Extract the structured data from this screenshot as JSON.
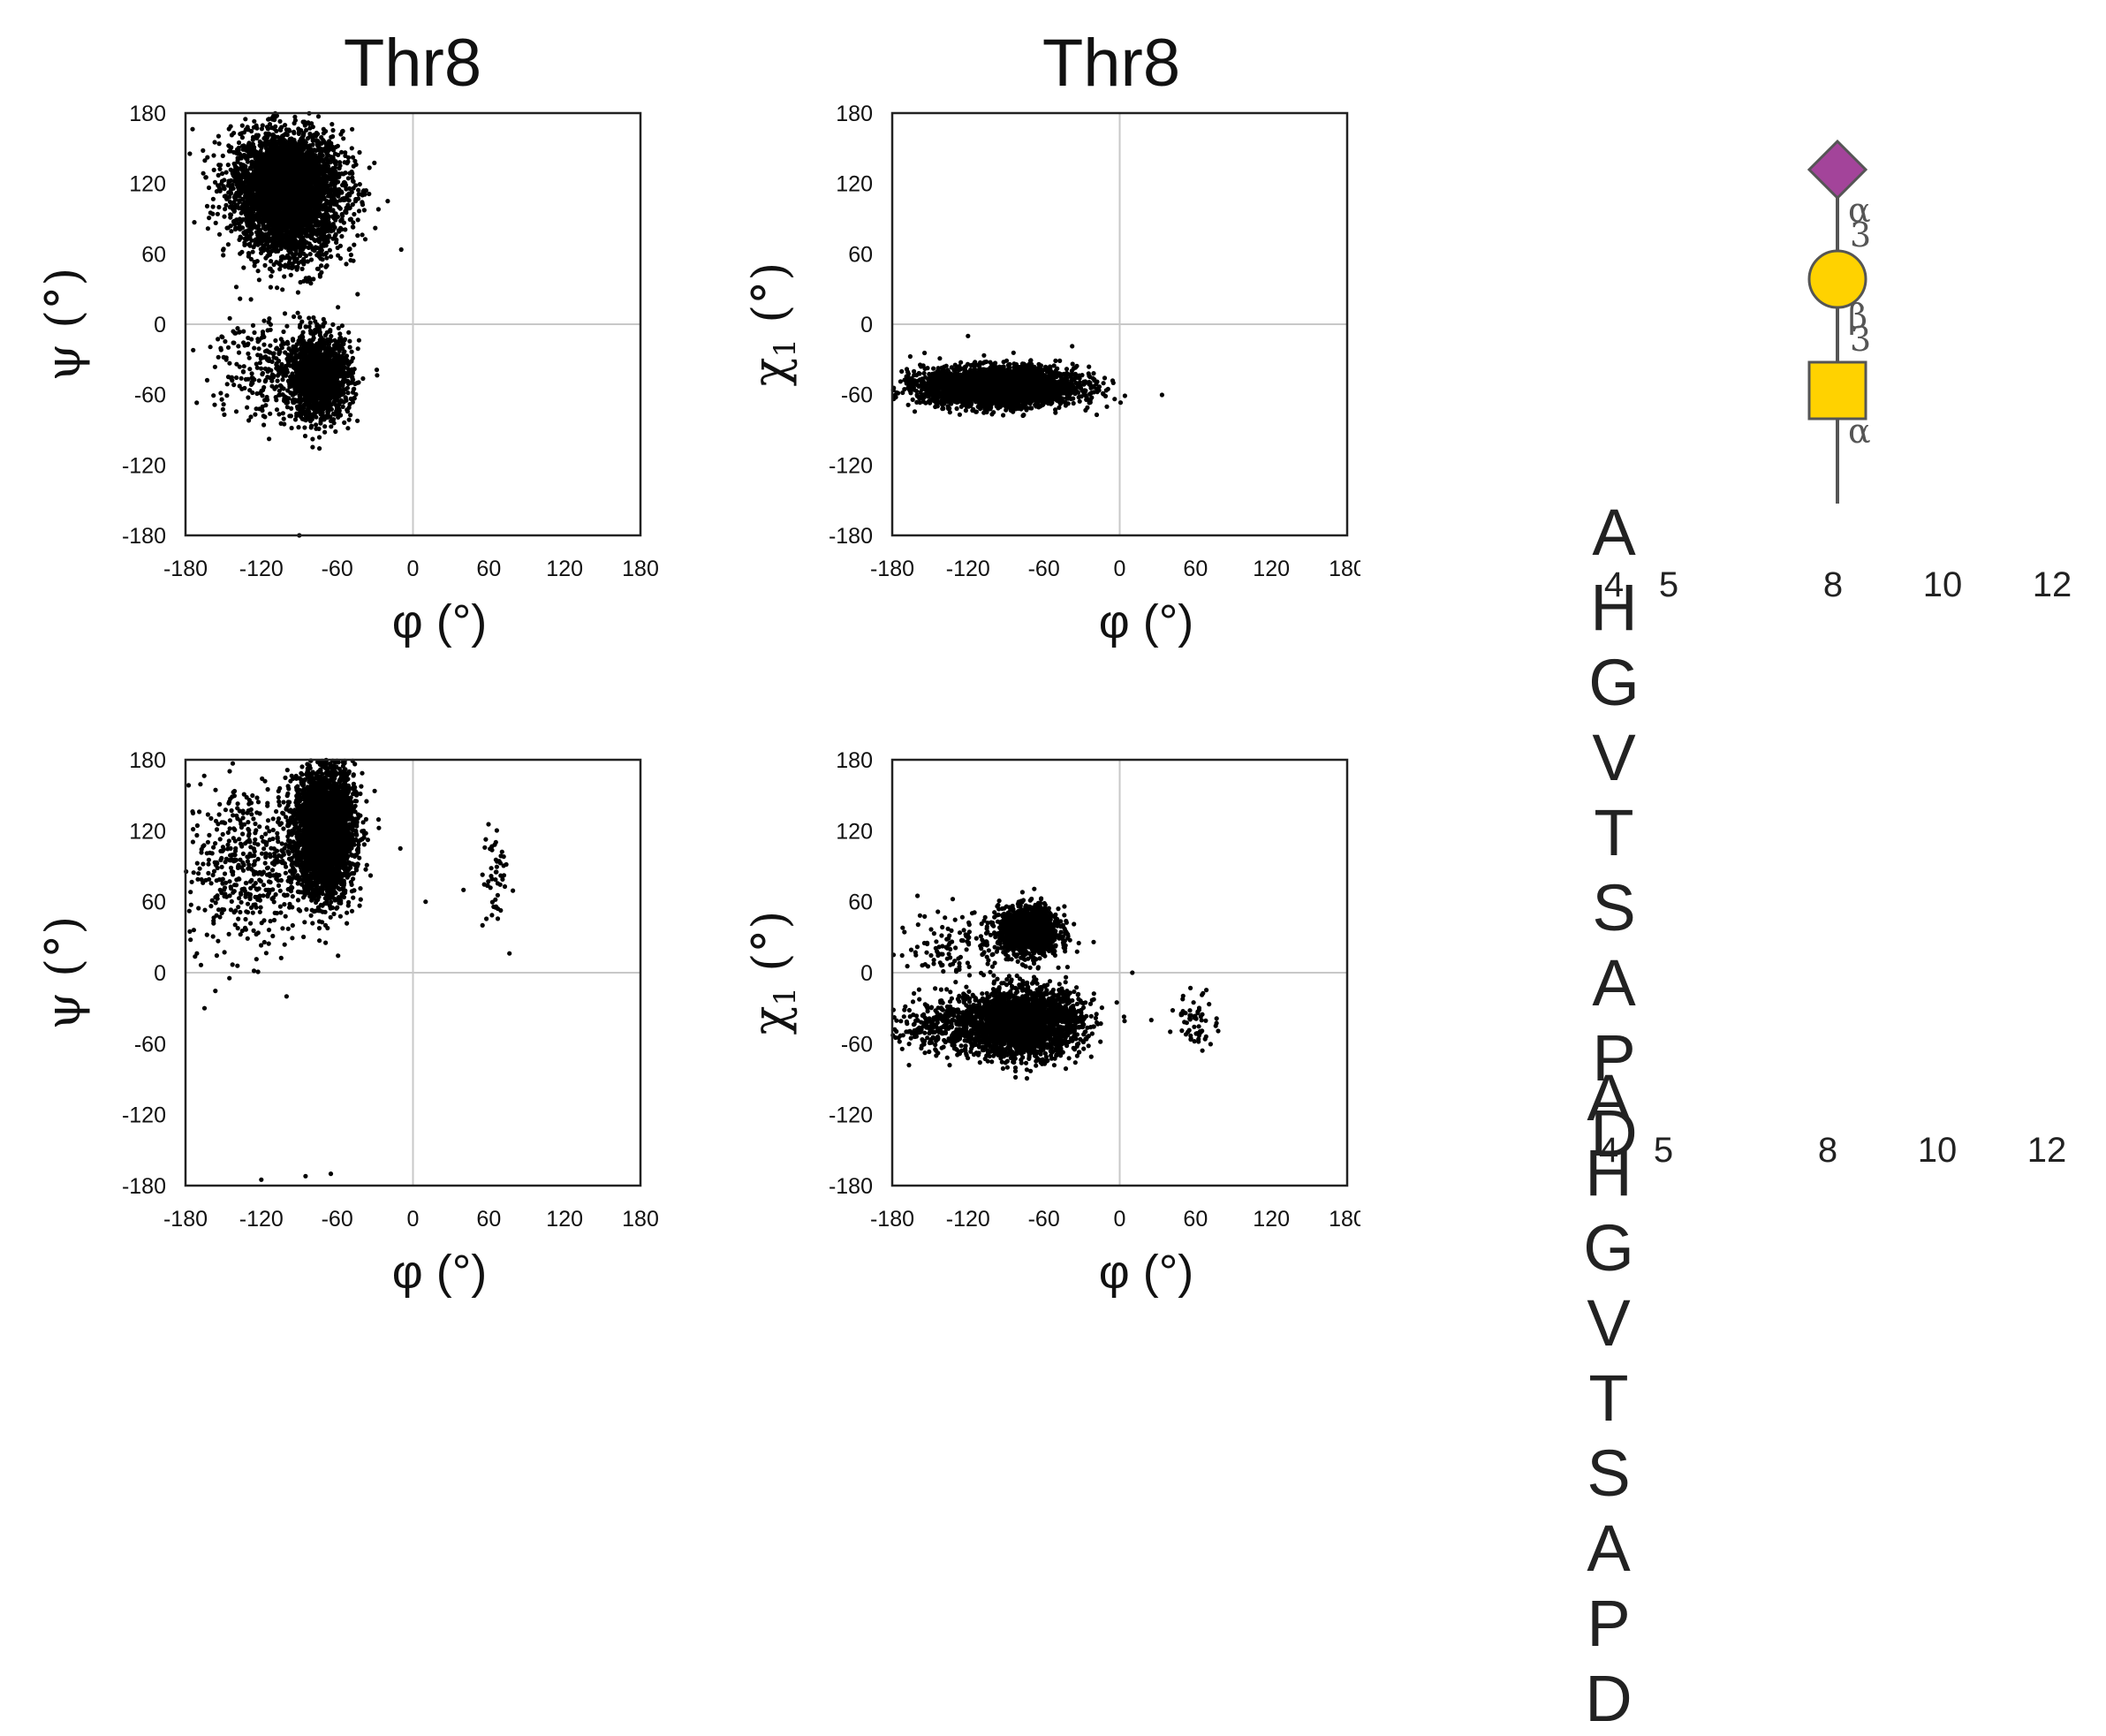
{
  "titles": {
    "left": "Thr8",
    "right": "Thr8"
  },
  "axis_labels": {
    "phi": "φ (°)",
    "psi": "ψ (°)",
    "chi": "χ",
    "chi_sub": "1",
    "chi_unit": " (°)"
  },
  "ticks": [
    "-180",
    "-120",
    "-60",
    "0",
    "60",
    "120",
    "180"
  ],
  "sequence": {
    "residues": [
      "A",
      "H",
      "G",
      "V",
      "T",
      "S",
      "A",
      "P",
      "D"
    ],
    "numbers": [
      {
        "label": "4",
        "index": 0
      },
      {
        "label": "5",
        "index": 1
      },
      {
        "label": "8",
        "index": 4
      },
      {
        "label": "10",
        "index": 6
      },
      {
        "label": "12",
        "index": 8
      }
    ]
  },
  "glycan": {
    "linkages": [
      "α",
      "3",
      "β",
      "3",
      "α"
    ],
    "colors": {
      "sialic_acid": "#a3449a",
      "galactose": "#ffd200",
      "galnac": "#ffd200",
      "stroke": "#555555"
    },
    "icons": [
      "diamond-sialic-acid",
      "circle-galactose",
      "square-galnac"
    ]
  },
  "chart_data": [
    {
      "type": "scatter",
      "panel": "top-left",
      "xlim": [
        -180,
        180
      ],
      "ylim": [
        -180,
        180
      ],
      "xlabel": "φ (°)",
      "ylabel": "ψ (°)",
      "clusters": [
        {
          "cx": -100,
          "cy": 120,
          "sx": 22,
          "sy": 22,
          "n": 3200
        },
        {
          "cx": -95,
          "cy": 80,
          "sx": 20,
          "sy": 18,
          "n": 700
        },
        {
          "cx": -75,
          "cy": -45,
          "sx": 13,
          "sy": 18,
          "n": 1500
        },
        {
          "cx": -125,
          "cy": -35,
          "sx": 18,
          "sy": 25,
          "n": 200
        }
      ],
      "points": [
        [
          -105,
          110
        ],
        [
          -90,
          -180
        ],
        [
          -40,
          110
        ],
        [
          -20,
          105
        ]
      ]
    },
    {
      "type": "scatter",
      "panel": "top-right",
      "xlim": [
        -180,
        180
      ],
      "ylim": [
        -180,
        180
      ],
      "xlabel": "φ (°)",
      "ylabel": "χ1 (°)",
      "clusters": [
        {
          "cx": -95,
          "cy": -53,
          "sx": 30,
          "sy": 8,
          "n": 3500
        }
      ],
      "points": [
        [
          -120,
          -10
        ],
        [
          -20,
          -48
        ],
        [
          -5,
          -50
        ]
      ]
    },
    {
      "type": "scatter",
      "panel": "bottom-left",
      "xlim": [
        -180,
        180
      ],
      "ylim": [
        -180,
        180
      ],
      "xlabel": "φ (°)",
      "ylabel": "ψ (°)",
      "clusters": [
        {
          "cx": -70,
          "cy": 120,
          "sx": 12,
          "sy": 28,
          "n": 3000
        },
        {
          "cx": -130,
          "cy": 90,
          "sx": 25,
          "sy": 35,
          "n": 500
        },
        {
          "cx": 65,
          "cy": 80,
          "sx": 5,
          "sy": 25,
          "n": 50
        }
      ],
      "points": [
        [
          -165,
          -30
        ],
        [
          -100,
          -20
        ],
        [
          -120,
          -175
        ],
        [
          -85,
          -172
        ],
        [
          -65,
          -170
        ],
        [
          -10,
          105
        ],
        [
          10,
          60
        ],
        [
          40,
          70
        ],
        [
          55,
          40
        ]
      ]
    },
    {
      "type": "scatter",
      "panel": "bottom-right",
      "xlim": [
        -180,
        180
      ],
      "ylim": [
        -180,
        180
      ],
      "xlabel": "φ (°)",
      "ylabel": "χ1 (°)",
      "clusters": [
        {
          "cx": -72,
          "cy": 35,
          "sx": 12,
          "sy": 10,
          "n": 1300
        },
        {
          "cx": -75,
          "cy": -42,
          "sx": 22,
          "sy": 14,
          "n": 2300
        },
        {
          "cx": -130,
          "cy": -45,
          "sx": 28,
          "sy": 12,
          "n": 500
        },
        {
          "cx": -130,
          "cy": 25,
          "sx": 18,
          "sy": 15,
          "n": 120
        },
        {
          "cx": 62,
          "cy": -40,
          "sx": 8,
          "sy": 12,
          "n": 60
        }
      ],
      "points": [
        [
          -160,
          65
        ],
        [
          10,
          0
        ],
        [
          25,
          -40
        ],
        [
          40,
          -50
        ],
        [
          -175,
          -55
        ]
      ]
    }
  ]
}
